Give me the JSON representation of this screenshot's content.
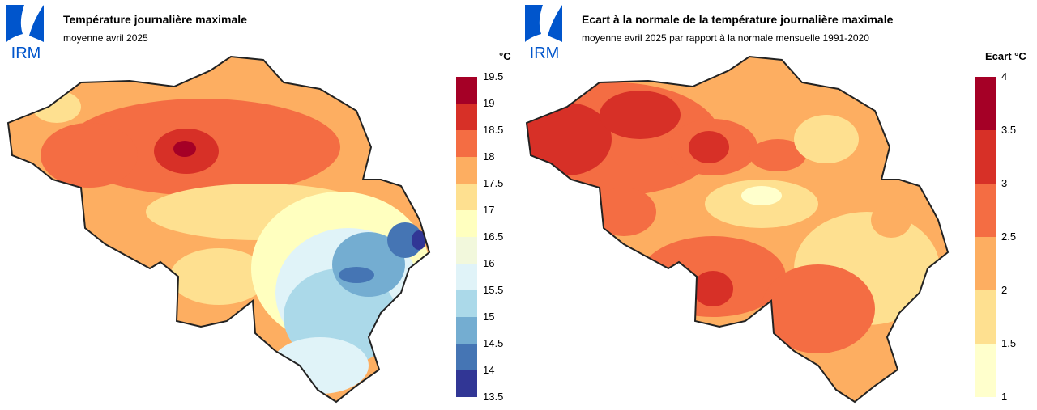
{
  "logo": {
    "text": "IRM",
    "color": "#0055cc"
  },
  "panels": [
    {
      "title": "Température journalière maximale",
      "subtitle": "moyenne avril 2025",
      "legend": {
        "unit": "°C",
        "ticks": [
          "19.5",
          "19",
          "18.5",
          "18",
          "17.5",
          "17",
          "16.5",
          "16",
          "15.5",
          "15",
          "14.5",
          "14",
          "13.5"
        ],
        "colors": [
          "#a50026",
          "#d73027",
          "#f46d43",
          "#fdae61",
          "#fee090",
          "#ffffbf",
          "#f2f8dc",
          "#e0f3f8",
          "#abd9e9",
          "#74add1",
          "#4575b4",
          "#313695"
        ]
      }
    },
    {
      "title": "Ecart à la normale de la température journalière maximale",
      "subtitle": "moyenne avril 2025 par rapport à la normale mensuelle 1991-2020",
      "legend": {
        "unit": "Ecart °C",
        "ticks": [
          "4",
          "3.5",
          "3",
          "2.5",
          "2",
          "1.5",
          "1"
        ],
        "colors": [
          "#a50026",
          "#d73027",
          "#f46d43",
          "#fdae61",
          "#fee090",
          "#ffffcc"
        ]
      }
    }
  ]
}
